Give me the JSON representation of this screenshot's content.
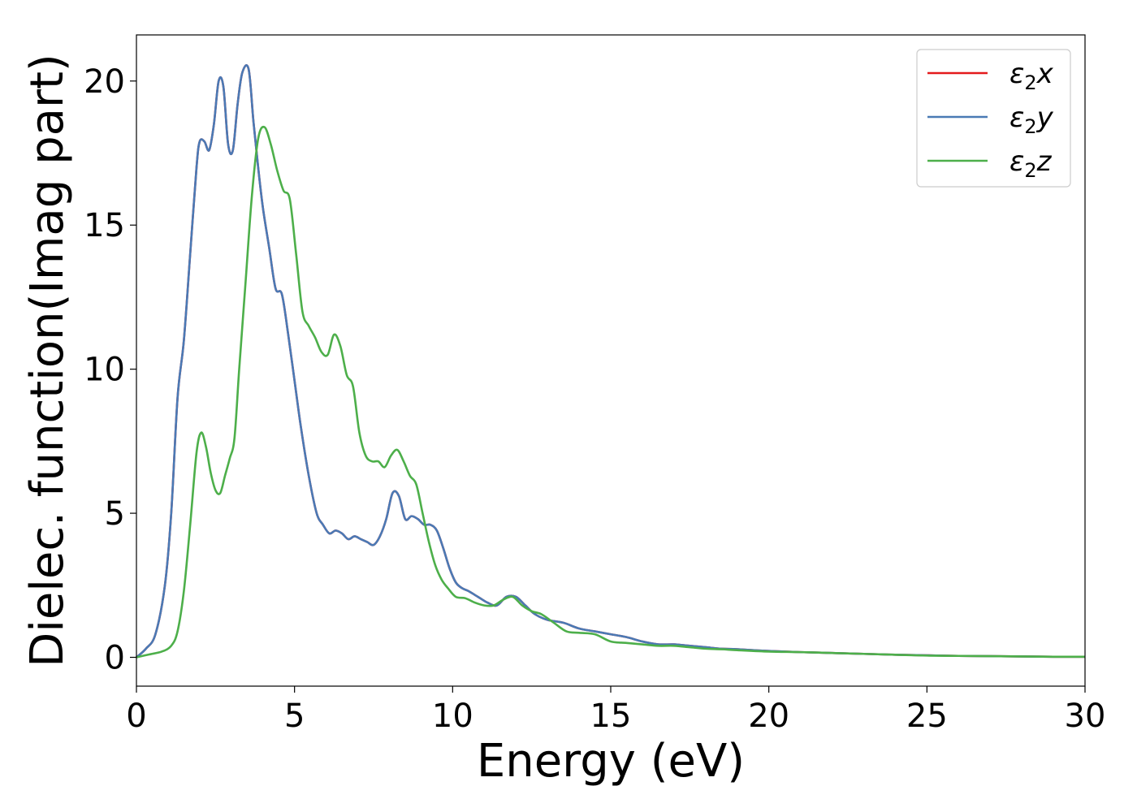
{
  "chart_data": {
    "type": "line",
    "xlabel": "Energy (eV)",
    "ylabel": "Dielec. function(Imag part)",
    "xlim": [
      0,
      30
    ],
    "ylim": [
      -1,
      21.6
    ],
    "xticks": [
      0,
      5,
      10,
      15,
      20,
      25,
      30
    ],
    "yticks": [
      0,
      5,
      10,
      15,
      20
    ],
    "grid": false,
    "legend_position": "top-right",
    "series": [
      {
        "name": "ε2x",
        "legend": {
          "base": "ε",
          "sub": "2",
          "suffix": "x"
        },
        "color": "#e41a1c",
        "x": [
          0,
          0.3,
          0.6,
          0.9,
          1.1,
          1.3,
          1.5,
          1.7,
          1.9,
          2.0,
          2.15,
          2.3,
          2.45,
          2.6,
          2.75,
          2.9,
          3.05,
          3.2,
          3.35,
          3.55,
          3.7,
          3.85,
          4.0,
          4.2,
          4.4,
          4.6,
          4.8,
          5.0,
          5.2,
          5.45,
          5.7,
          5.9,
          6.1,
          6.3,
          6.5,
          6.7,
          6.9,
          7.1,
          7.3,
          7.5,
          7.7,
          7.9,
          8.1,
          8.3,
          8.5,
          8.7,
          8.9,
          9.1,
          9.3,
          9.5,
          9.7,
          9.9,
          10.1,
          10.3,
          10.5,
          10.8,
          11.1,
          11.4,
          11.7,
          12.0,
          12.3,
          12.6,
          13.0,
          13.5,
          14.0,
          14.5,
          15.0,
          15.5,
          16.0,
          16.5,
          17.0,
          17.5,
          18.0,
          18.5,
          19.0,
          20.0,
          21.0,
          22.0,
          23.0,
          24.0,
          25.0,
          26.0,
          27.0,
          28.0,
          29.0,
          30.0
        ],
        "y": [
          0.0,
          0.3,
          0.8,
          2.5,
          5.0,
          9.0,
          11.0,
          14.0,
          17.0,
          17.9,
          17.9,
          17.6,
          18.5,
          20.0,
          19.8,
          17.8,
          17.6,
          19.2,
          20.3,
          20.4,
          18.6,
          17.0,
          15.6,
          14.2,
          12.8,
          12.6,
          11.2,
          9.6,
          8.0,
          6.3,
          5.0,
          4.6,
          4.3,
          4.4,
          4.3,
          4.1,
          4.2,
          4.1,
          4.0,
          3.9,
          4.2,
          4.8,
          5.7,
          5.6,
          4.8,
          4.9,
          4.8,
          4.6,
          4.6,
          4.4,
          3.8,
          3.1,
          2.6,
          2.4,
          2.3,
          2.1,
          1.9,
          1.8,
          2.1,
          2.1,
          1.8,
          1.5,
          1.3,
          1.2,
          1.0,
          0.9,
          0.8,
          0.7,
          0.55,
          0.45,
          0.45,
          0.4,
          0.35,
          0.3,
          0.28,
          0.22,
          0.18,
          0.15,
          0.12,
          0.09,
          0.07,
          0.05,
          0.04,
          0.03,
          0.02,
          0.02
        ]
      },
      {
        "name": "ε2y",
        "legend": {
          "base": "ε",
          "sub": "2",
          "suffix": "y"
        },
        "color": "#4a7ab5",
        "x": [
          0,
          0.3,
          0.6,
          0.9,
          1.1,
          1.3,
          1.5,
          1.7,
          1.9,
          2.0,
          2.15,
          2.3,
          2.45,
          2.6,
          2.75,
          2.9,
          3.05,
          3.2,
          3.35,
          3.55,
          3.7,
          3.85,
          4.0,
          4.2,
          4.4,
          4.6,
          4.8,
          5.0,
          5.2,
          5.45,
          5.7,
          5.9,
          6.1,
          6.3,
          6.5,
          6.7,
          6.9,
          7.1,
          7.3,
          7.5,
          7.7,
          7.9,
          8.1,
          8.3,
          8.5,
          8.7,
          8.9,
          9.1,
          9.3,
          9.5,
          9.7,
          9.9,
          10.1,
          10.3,
          10.5,
          10.8,
          11.1,
          11.4,
          11.7,
          12.0,
          12.3,
          12.6,
          13.0,
          13.5,
          14.0,
          14.5,
          15.0,
          15.5,
          16.0,
          16.5,
          17.0,
          17.5,
          18.0,
          18.5,
          19.0,
          20.0,
          21.0,
          22.0,
          23.0,
          24.0,
          25.0,
          26.0,
          27.0,
          28.0,
          29.0,
          30.0
        ],
        "y": [
          0.0,
          0.3,
          0.8,
          2.5,
          5.0,
          9.0,
          11.0,
          14.0,
          17.0,
          17.9,
          17.9,
          17.6,
          18.5,
          20.0,
          19.8,
          17.8,
          17.6,
          19.2,
          20.3,
          20.4,
          18.6,
          17.0,
          15.6,
          14.2,
          12.8,
          12.6,
          11.2,
          9.6,
          8.0,
          6.3,
          5.0,
          4.6,
          4.3,
          4.4,
          4.3,
          4.1,
          4.2,
          4.1,
          4.0,
          3.9,
          4.2,
          4.8,
          5.7,
          5.6,
          4.8,
          4.9,
          4.8,
          4.6,
          4.6,
          4.4,
          3.8,
          3.1,
          2.6,
          2.4,
          2.3,
          2.1,
          1.9,
          1.8,
          2.1,
          2.1,
          1.8,
          1.5,
          1.3,
          1.2,
          1.0,
          0.9,
          0.8,
          0.7,
          0.55,
          0.45,
          0.45,
          0.4,
          0.35,
          0.3,
          0.28,
          0.22,
          0.18,
          0.15,
          0.12,
          0.09,
          0.07,
          0.05,
          0.04,
          0.03,
          0.02,
          0.02
        ]
      },
      {
        "name": "ε2z",
        "legend": {
          "base": "ε",
          "sub": "2",
          "suffix": "z"
        },
        "color": "#4daf4a",
        "x": [
          0,
          0.4,
          0.8,
          1.1,
          1.3,
          1.5,
          1.7,
          1.9,
          2.05,
          2.2,
          2.35,
          2.5,
          2.65,
          2.8,
          2.95,
          3.1,
          3.25,
          3.45,
          3.65,
          3.85,
          4.05,
          4.25,
          4.45,
          4.65,
          4.85,
          5.05,
          5.25,
          5.45,
          5.65,
          5.85,
          6.05,
          6.25,
          6.45,
          6.65,
          6.85,
          7.05,
          7.25,
          7.45,
          7.65,
          7.85,
          8.05,
          8.25,
          8.45,
          8.65,
          8.85,
          9.05,
          9.25,
          9.45,
          9.65,
          9.85,
          10.1,
          10.4,
          10.7,
          11.0,
          11.3,
          11.6,
          11.9,
          12.2,
          12.5,
          12.8,
          13.2,
          13.6,
          14.0,
          14.5,
          15.0,
          15.5,
          16.0,
          16.5,
          17.0,
          17.5,
          18.0,
          18.5,
          19.0,
          20.0,
          21.0,
          22.0,
          23.0,
          24.0,
          25.0,
          26.0,
          27.0,
          28.0,
          29.0,
          30.0
        ],
        "y": [
          0.0,
          0.1,
          0.2,
          0.4,
          0.9,
          2.3,
          4.6,
          7.1,
          7.8,
          7.3,
          6.4,
          5.8,
          5.7,
          6.3,
          6.9,
          7.6,
          10.0,
          13.0,
          16.0,
          18.0,
          18.4,
          17.8,
          16.9,
          16.2,
          15.9,
          14.0,
          12.0,
          11.5,
          11.1,
          10.6,
          10.5,
          11.2,
          10.8,
          9.8,
          9.4,
          7.8,
          7.0,
          6.8,
          6.8,
          6.6,
          7.0,
          7.2,
          6.8,
          6.3,
          6.0,
          5.0,
          4.0,
          3.2,
          2.7,
          2.4,
          2.1,
          2.05,
          1.9,
          1.8,
          1.8,
          2.0,
          2.1,
          1.8,
          1.6,
          1.5,
          1.2,
          0.9,
          0.85,
          0.8,
          0.55,
          0.5,
          0.45,
          0.4,
          0.4,
          0.35,
          0.3,
          0.28,
          0.25,
          0.2,
          0.18,
          0.15,
          0.12,
          0.09,
          0.06,
          0.05,
          0.04,
          0.03,
          0.02,
          0.02
        ]
      }
    ]
  }
}
